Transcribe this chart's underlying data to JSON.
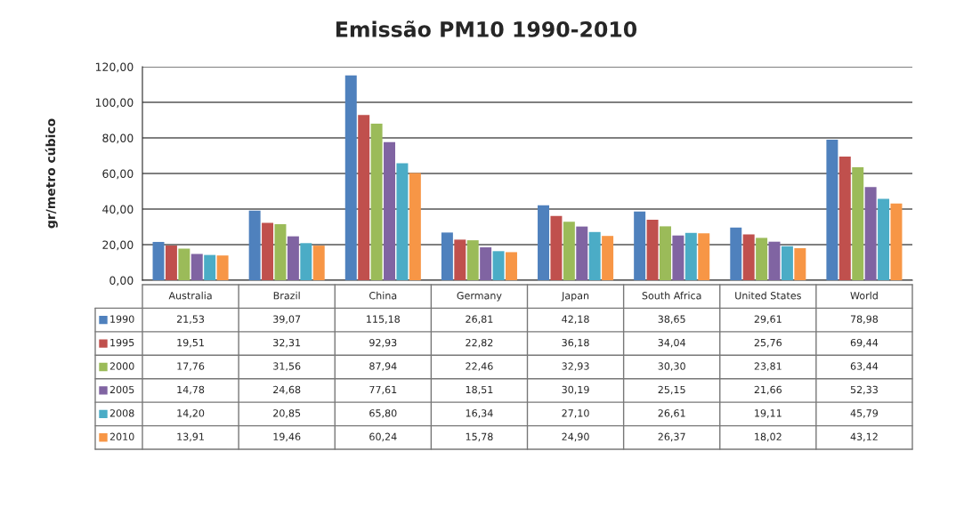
{
  "chart_data": {
    "type": "bar",
    "title": "Emissão PM10 1990-2010",
    "ylabel": "gr/metro cúbico",
    "categories": [
      "Australia",
      "Brazil",
      "China",
      "Germany",
      "Japan",
      "South Africa",
      "United States",
      "World"
    ],
    "series": [
      {
        "name": "1990",
        "color": "#4f81bd",
        "values": [
          21.53,
          39.07,
          115.18,
          26.81,
          42.18,
          38.65,
          29.61,
          78.98
        ],
        "value_labels": [
          "21,53",
          "39,07",
          "115,18",
          "26,81",
          "42,18",
          "38,65",
          "29,61",
          "78,98"
        ]
      },
      {
        "name": "1995",
        "color": "#c0504d",
        "values": [
          19.51,
          32.31,
          92.93,
          22.82,
          36.18,
          34.04,
          25.76,
          69.44
        ],
        "value_labels": [
          "19,51",
          "32,31",
          "92,93",
          "22,82",
          "36,18",
          "34,04",
          "25,76",
          "69,44"
        ]
      },
      {
        "name": "2000",
        "color": "#9bbb59",
        "values": [
          17.76,
          31.56,
          87.94,
          22.46,
          32.93,
          30.3,
          23.81,
          63.44
        ],
        "value_labels": [
          "17,76",
          "31,56",
          "87,94",
          "22,46",
          "32,93",
          "30,30",
          "23,81",
          "63,44"
        ]
      },
      {
        "name": "2005",
        "color": "#8064a2",
        "values": [
          14.78,
          24.68,
          77.61,
          18.51,
          30.19,
          25.15,
          21.66,
          52.33
        ],
        "value_labels": [
          "14,78",
          "24,68",
          "77,61",
          "18,51",
          "30,19",
          "25,15",
          "21,66",
          "52,33"
        ]
      },
      {
        "name": "2008",
        "color": "#4bacc6",
        "values": [
          14.2,
          20.85,
          65.8,
          16.34,
          27.1,
          26.61,
          19.11,
          45.79
        ],
        "value_labels": [
          "14,20",
          "20,85",
          "65,80",
          "16,34",
          "27,10",
          "26,61",
          "19,11",
          "45,79"
        ]
      },
      {
        "name": "2010",
        "color": "#f79646",
        "values": [
          13.91,
          19.46,
          60.24,
          15.78,
          24.9,
          26.37,
          18.02,
          43.12
        ],
        "value_labels": [
          "13,91",
          "19,46",
          "60,24",
          "15,78",
          "24,90",
          "26,37",
          "18,02",
          "43,12"
        ]
      }
    ],
    "ylim": [
      0,
      120
    ],
    "yticks": [
      {
        "value": 0,
        "label": "0,00"
      },
      {
        "value": 20,
        "label": "20,00"
      },
      {
        "value": 40,
        "label": "40,00"
      },
      {
        "value": 60,
        "label": "60,00"
      },
      {
        "value": 80,
        "label": "80,00"
      },
      {
        "value": 100,
        "label": "100,00"
      },
      {
        "value": 120,
        "label": "120,00"
      }
    ],
    "grid": "y",
    "legend": "bottom left"
  }
}
